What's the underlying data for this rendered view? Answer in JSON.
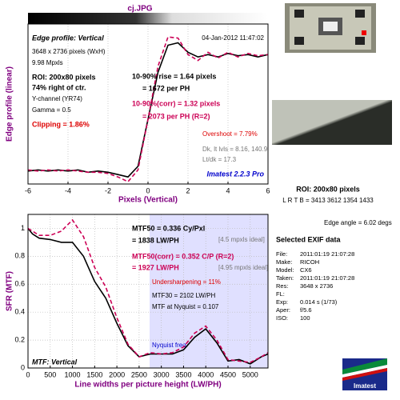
{
  "file_title": "cj.JPG",
  "chart_data": [
    {
      "type": "line",
      "title": "Edge profile: Vertical",
      "x_label": "Pixels (Vertical)",
      "y_label": "Edge profile (linear)",
      "x": [
        -6,
        -5.5,
        -5,
        -4.5,
        -4,
        -3.5,
        -3,
        -2.5,
        -2,
        -1.5,
        -1,
        -0.5,
        0,
        0.5,
        1,
        1.5,
        2,
        2.5,
        3,
        3.5,
        4,
        4.5,
        5,
        5.5,
        6
      ],
      "series": [
        {
          "name": "Edge",
          "color": "#000000",
          "values": [
            0.01,
            0.02,
            0.01,
            0.02,
            0.01,
            0.02,
            0.0,
            0.01,
            0.0,
            -0.02,
            -0.04,
            0.05,
            0.45,
            0.85,
            1.08,
            1.1,
            1.02,
            0.98,
            1.0,
            0.98,
            1.01,
            0.99,
            1.0,
            0.98,
            1.0
          ]
        },
        {
          "name": "Edge (corr)",
          "color": "#cc0055",
          "values": [
            0.02,
            0.01,
            0.02,
            0.01,
            0.02,
            0.01,
            0.0,
            0.0,
            -0.01,
            -0.04,
            -0.08,
            0.02,
            0.45,
            0.9,
            1.15,
            1.14,
            1.0,
            0.95,
            1.02,
            0.97,
            1.02,
            0.98,
            1.01,
            0.99,
            1.0
          ]
        }
      ],
      "xlim": [
        -6,
        6
      ],
      "xticks": [
        -6,
        -4,
        -2,
        0,
        2,
        4,
        6
      ],
      "ylim": [
        -0.1,
        1.26
      ],
      "grid": true,
      "annotations": [
        "04-Jan-2012 11:47:02",
        "3648 x 2736 pixels (WxH)",
        "9.98 Mpxls",
        "ROI: 200x80 pixels",
        "74% right of ctr.",
        "Y-channel  (YR74)",
        "Gamma = 0.5",
        "Clipping =  1.86%",
        "10-90% rise = 1.64 pixels",
        "= 1672 per PH",
        "10-90%(corr) = 1.32 pixels",
        "= 2073 per PH  (R=2)",
        "Overshoot = 7.79%",
        "Dk, lt lvls = 8.16, 140.9",
        "Lt/dk = 17.3",
        "Imatest 2.2.3 Pro"
      ]
    },
    {
      "type": "line",
      "title": "MTF: Vertical",
      "x_label": "Line widths per picture height (LW/PH)",
      "y_label": "SFR (MTF)",
      "x": [
        0,
        100,
        250,
        500,
        750,
        1000,
        1250,
        1500,
        1750,
        2000,
        2250,
        2500,
        2750,
        3000,
        3250,
        3500,
        3750,
        4000,
        4250,
        4500,
        4750,
        5000,
        5250,
        5400
      ],
      "series": [
        {
          "name": "MTF",
          "color": "#000000",
          "values": [
            1.0,
            0.96,
            0.93,
            0.92,
            0.9,
            0.9,
            0.8,
            0.62,
            0.5,
            0.32,
            0.16,
            0.08,
            0.1,
            0.1,
            0.1,
            0.13,
            0.22,
            0.28,
            0.18,
            0.05,
            0.06,
            0.03,
            0.08,
            0.1
          ]
        },
        {
          "name": "MTF (corr)",
          "color": "#cc0055",
          "values": [
            1.0,
            0.98,
            0.95,
            0.95,
            0.98,
            1.06,
            0.94,
            0.72,
            0.58,
            0.36,
            0.17,
            0.08,
            0.11,
            0.1,
            0.11,
            0.15,
            0.25,
            0.3,
            0.2,
            0.06,
            0.05,
            0.04,
            0.08,
            0.11
          ]
        }
      ],
      "xlim": [
        0,
        5400
      ],
      "xticks": [
        0,
        500,
        1000,
        1500,
        2000,
        2500,
        3000,
        3500,
        4000,
        4500,
        5000
      ],
      "ylim": [
        0,
        1.1
      ],
      "yticks": [
        0,
        0.2,
        0.4,
        0.6,
        0.8,
        1
      ],
      "grid": true,
      "nyquist": 2736,
      "nyquist_label": "Nyquist freq.",
      "annotations": [
        "MTF50 = 0.336 Cy/Pxl",
        "= 1838 LW/PH",
        "[4.5 mpxls ideal]",
        "MTF50(corr) = 0.352 C/P   (R=2)",
        "= 1927 LW/PH",
        "[4.95 mpxls ideal]",
        "Undersharpening = 11%",
        "MTF30 = 2102 LW/PH",
        "MTF at Nyquist = 0.107"
      ]
    }
  ],
  "side_panel": {
    "roi": "ROI: 200x80 pixels",
    "lrtb": "L R T B = 3413 3612  1354 1433",
    "edge_angle": "Edge angle = 6.02 degs",
    "exif_title": "Selected EXIF data",
    "exif": [
      [
        "File:",
        "2011:01:19 21:07:28"
      ],
      [
        "Make:",
        "RICOH"
      ],
      [
        "Model:",
        "CX6"
      ],
      [
        "Taken:",
        "2011:01:19 21:07:28"
      ],
      [
        "Res:",
        "3648 x 2736"
      ],
      [
        "FL:",
        ""
      ],
      [
        "Exp:",
        "0.014 s  (1/73)"
      ],
      [
        "Aper:",
        "f/5.6"
      ],
      [
        "ISO:",
        "100"
      ]
    ],
    "logo": "Imatest"
  }
}
